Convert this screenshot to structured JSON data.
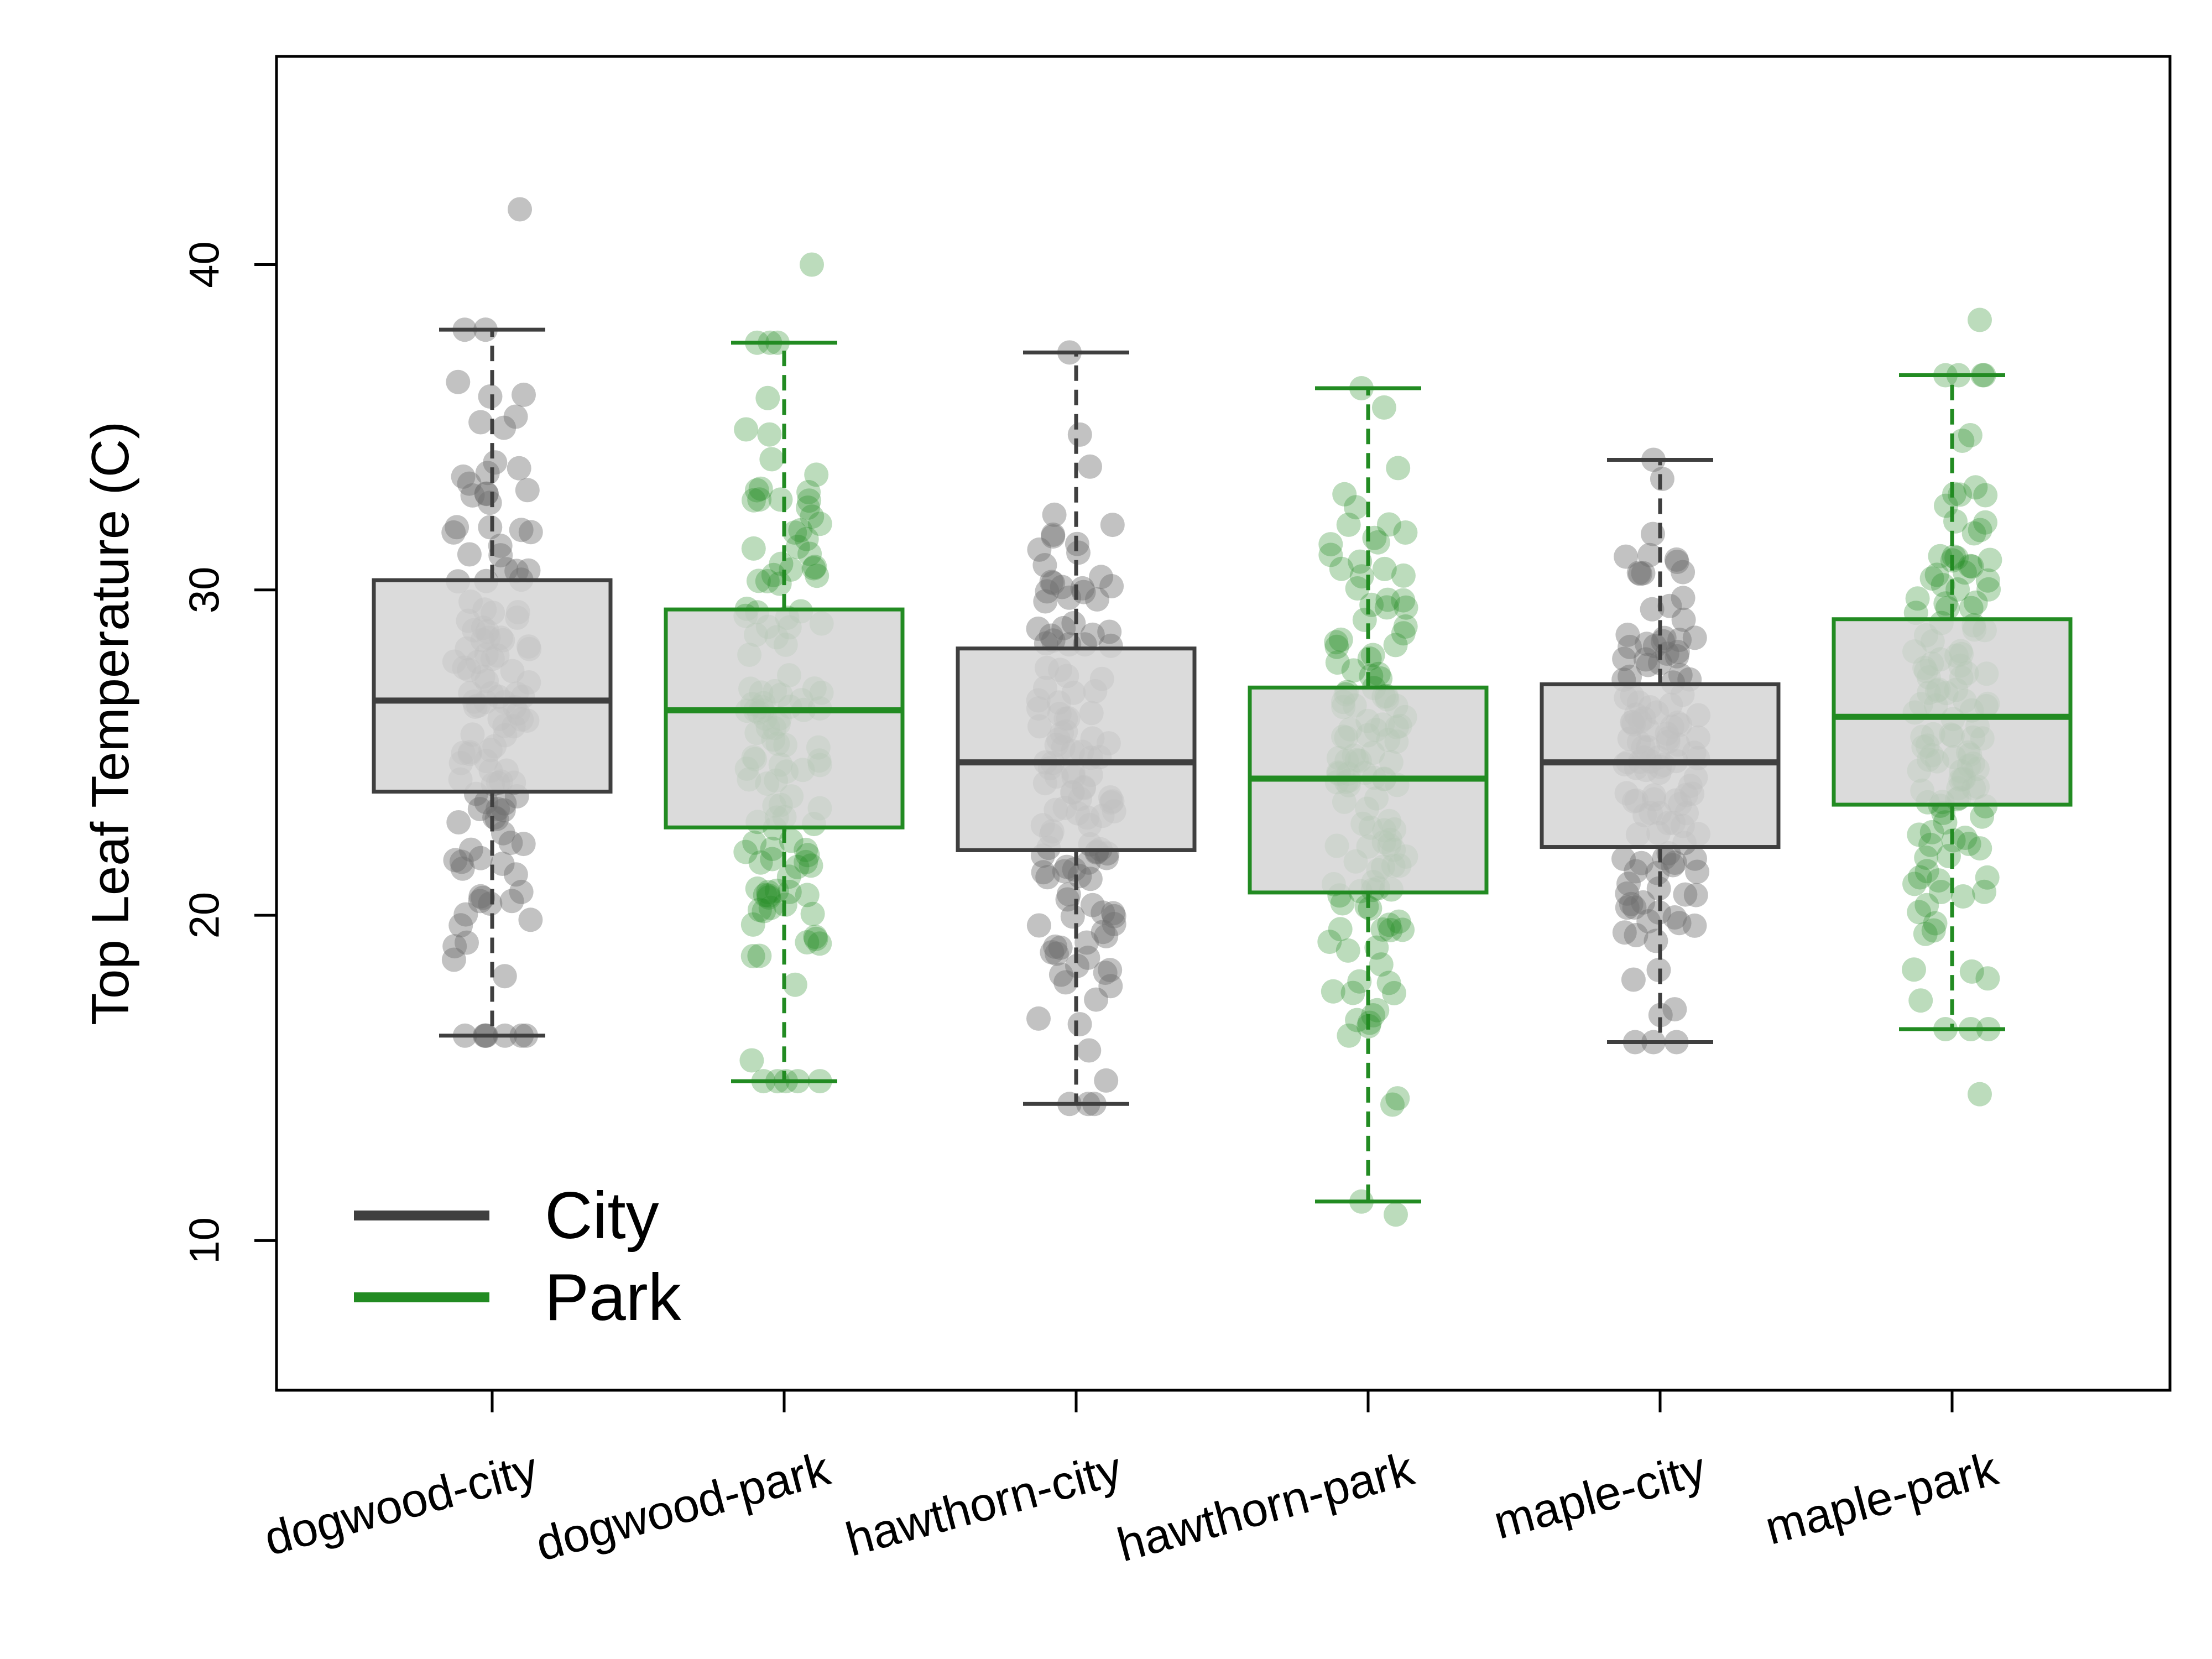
{
  "chart_data": {
    "type": "box",
    "title": "",
    "xlabel": "",
    "ylabel": "Top Leaf Temperature  (C)",
    "ylim": [
      5.4,
      46.4
    ],
    "yticks": [
      10,
      20,
      30,
      40
    ],
    "grid": false,
    "legend": {
      "position": "bottom-left",
      "entries": [
        {
          "label": "City",
          "color": "#3f3f3f"
        },
        {
          "label": "Park",
          "color": "#228b22"
        }
      ]
    },
    "colors": {
      "city": "#3f3f3f",
      "park": "#228b22",
      "box_fill": "#d3d3d3",
      "city_points": "#6e6e6e",
      "park_points": "#228b22"
    },
    "categories": [
      "dogwood-city",
      "dogwood-park",
      "hawthorn-city",
      "hawthorn-park",
      "maple-city",
      "maple-park"
    ],
    "boxes": [
      {
        "category": "dogwood-city",
        "group": "City",
        "whisker_low": 16.3,
        "q1": 23.8,
        "median": 26.6,
        "q3": 30.3,
        "whisker_high": 38.0,
        "outliers": [
          41.7
        ]
      },
      {
        "category": "dogwood-park",
        "group": "Park",
        "whisker_low": 14.9,
        "q1": 22.7,
        "median": 26.3,
        "q3": 29.4,
        "whisker_high": 37.6,
        "outliers": [
          40.0
        ]
      },
      {
        "category": "hawthorn-city",
        "group": "City",
        "whisker_low": 14.2,
        "q1": 22.0,
        "median": 24.7,
        "q3": 28.2,
        "whisker_high": 37.3,
        "outliers": []
      },
      {
        "category": "hawthorn-park",
        "group": "Park",
        "whisker_low": 11.2,
        "q1": 20.7,
        "median": 24.2,
        "q3": 27.0,
        "whisker_high": 36.2,
        "outliers": [
          10.8
        ]
      },
      {
        "category": "maple-city",
        "group": "City",
        "whisker_low": 16.1,
        "q1": 22.1,
        "median": 24.7,
        "q3": 27.1,
        "whisker_high": 34.0,
        "outliers": []
      },
      {
        "category": "maple-park",
        "group": "Park",
        "whisker_low": 16.5,
        "q1": 23.4,
        "median": 26.1,
        "q3": 29.1,
        "whisker_high": 36.6,
        "outliers": [
          38.3,
          14.5
        ]
      }
    ]
  }
}
